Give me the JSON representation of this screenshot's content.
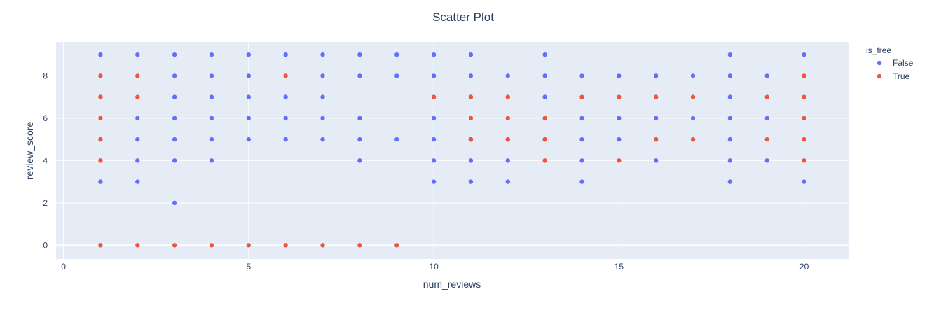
{
  "chart_data": {
    "type": "scatter",
    "title": "Scatter Plot",
    "xlabel": "num_reviews",
    "ylabel": "review_score",
    "xlim": [
      -0.2,
      21.2
    ],
    "ylim": [
      -0.65,
      9.6
    ],
    "xticks": [
      0,
      5,
      10,
      15,
      20
    ],
    "yticks": [
      0,
      2,
      4,
      6,
      8
    ],
    "grid": true,
    "legend_title": "is_free",
    "legend_position": "top-right",
    "colors": {
      "plot_bg": "#E5ECF6",
      "grid": "#FFFFFF",
      "text": "#2a3f5f"
    },
    "series": [
      {
        "name": "False",
        "color": "#636EFA",
        "points": [
          [
            1,
            9
          ],
          [
            1,
            3
          ],
          [
            2,
            9
          ],
          [
            2,
            6
          ],
          [
            2,
            5
          ],
          [
            2,
            4
          ],
          [
            2,
            3
          ],
          [
            3,
            9
          ],
          [
            3,
            8
          ],
          [
            3,
            7
          ],
          [
            3,
            6
          ],
          [
            3,
            5
          ],
          [
            3,
            4
          ],
          [
            3,
            2
          ],
          [
            4,
            9
          ],
          [
            4,
            8
          ],
          [
            4,
            7
          ],
          [
            4,
            6
          ],
          [
            4,
            5
          ],
          [
            4,
            4
          ],
          [
            5,
            9
          ],
          [
            5,
            8
          ],
          [
            5,
            7
          ],
          [
            5,
            6
          ],
          [
            5,
            5
          ],
          [
            6,
            9
          ],
          [
            6,
            7
          ],
          [
            6,
            6
          ],
          [
            6,
            5
          ],
          [
            7,
            9
          ],
          [
            7,
            8
          ],
          [
            7,
            7
          ],
          [
            7,
            6
          ],
          [
            7,
            5
          ],
          [
            8,
            9
          ],
          [
            8,
            8
          ],
          [
            8,
            6
          ],
          [
            8,
            5
          ],
          [
            8,
            4
          ],
          [
            9,
            9
          ],
          [
            9,
            8
          ],
          [
            9,
            5
          ],
          [
            10,
            9
          ],
          [
            10,
            8
          ],
          [
            10,
            6
          ],
          [
            10,
            5
          ],
          [
            10,
            4
          ],
          [
            10,
            3
          ],
          [
            11,
            9
          ],
          [
            11,
            8
          ],
          [
            11,
            5
          ],
          [
            11,
            4
          ],
          [
            11,
            3
          ],
          [
            12,
            8
          ],
          [
            12,
            5
          ],
          [
            12,
            4
          ],
          [
            12,
            3
          ],
          [
            13,
            9
          ],
          [
            13,
            8
          ],
          [
            13,
            7
          ],
          [
            13,
            5
          ],
          [
            14,
            8
          ],
          [
            14,
            6
          ],
          [
            14,
            5
          ],
          [
            14,
            4
          ],
          [
            14,
            3
          ],
          [
            15,
            8
          ],
          [
            15,
            6
          ],
          [
            15,
            5
          ],
          [
            16,
            8
          ],
          [
            16,
            6
          ],
          [
            16,
            4
          ],
          [
            17,
            8
          ],
          [
            17,
            6
          ],
          [
            18,
            9
          ],
          [
            18,
            8
          ],
          [
            18,
            7
          ],
          [
            18,
            6
          ],
          [
            18,
            5
          ],
          [
            18,
            4
          ],
          [
            18,
            3
          ],
          [
            19,
            8
          ],
          [
            19,
            6
          ],
          [
            19,
            4
          ],
          [
            20,
            9
          ],
          [
            20,
            3
          ]
        ]
      },
      {
        "name": "True",
        "color": "#EF553B",
        "points": [
          [
            1,
            8
          ],
          [
            1,
            7
          ],
          [
            1,
            6
          ],
          [
            1,
            5
          ],
          [
            1,
            4
          ],
          [
            1,
            0
          ],
          [
            2,
            8
          ],
          [
            2,
            7
          ],
          [
            2,
            0
          ],
          [
            3,
            0
          ],
          [
            4,
            0
          ],
          [
            5,
            0
          ],
          [
            6,
            8
          ],
          [
            6,
            0
          ],
          [
            7,
            0
          ],
          [
            8,
            0
          ],
          [
            9,
            0
          ],
          [
            10,
            7
          ],
          [
            11,
            7
          ],
          [
            11,
            6
          ],
          [
            11,
            5
          ],
          [
            12,
            7
          ],
          [
            12,
            6
          ],
          [
            12,
            5
          ],
          [
            13,
            6
          ],
          [
            13,
            5
          ],
          [
            13,
            4
          ],
          [
            14,
            7
          ],
          [
            15,
            7
          ],
          [
            15,
            4
          ],
          [
            16,
            7
          ],
          [
            16,
            5
          ],
          [
            17,
            7
          ],
          [
            17,
            5
          ],
          [
            19,
            7
          ],
          [
            19,
            5
          ],
          [
            20,
            8
          ],
          [
            20,
            7
          ],
          [
            20,
            6
          ],
          [
            20,
            5
          ],
          [
            20,
            4
          ]
        ]
      }
    ]
  }
}
